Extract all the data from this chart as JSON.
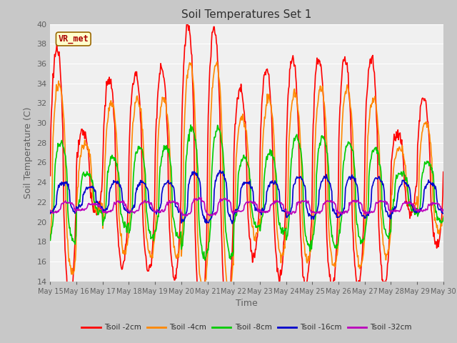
{
  "title": "Soil Temperatures Set 1",
  "xlabel": "Time",
  "ylabel": "Soil Temperature (C)",
  "ylim": [
    14,
    40
  ],
  "yticks": [
    14,
    16,
    18,
    20,
    22,
    24,
    26,
    28,
    30,
    32,
    34,
    36,
    38,
    40
  ],
  "xlim": [
    15,
    30
  ],
  "annotation": "VR_met",
  "fig_bg": "#c8c8c8",
  "plot_bg": "#f0f0f0",
  "series_colors": [
    "#ff0000",
    "#ff8800",
    "#00cc00",
    "#0000cc",
    "#bb00bb"
  ],
  "series_labels": [
    "Tsoil -2cm",
    "Tsoil -4cm",
    "Tsoil -8cm",
    "Tsoil -16cm",
    "Tsoil -32cm"
  ],
  "line_width": 1.2,
  "grid_color": "#ffffff",
  "tick_color": "#606060",
  "title_fontsize": 11,
  "label_fontsize": 9,
  "tick_fontsize": 8
}
